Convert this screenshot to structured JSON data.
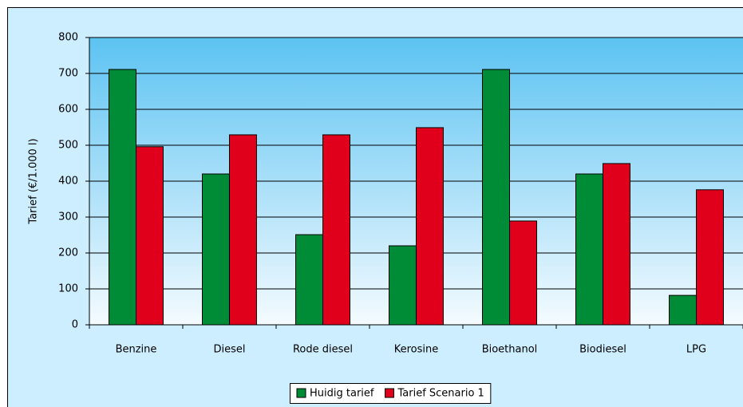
{
  "chart_data": {
    "type": "bar",
    "y_label": "Tarief (€/1.000 l)",
    "categories": [
      "Benzine",
      "Diesel",
      "Rode diesel",
      "Kerosine",
      "Bioethanol",
      "Biodiesel",
      "LPG"
    ],
    "series": [
      {
        "name": "Huidig tarief",
        "color": "#008c37",
        "values": [
          711,
          420,
          251,
          220,
          711,
          420,
          82
        ]
      },
      {
        "name": "Tarief Scenario 1",
        "color": "#e0001b",
        "values": [
          496,
          529,
          529,
          549,
          289,
          449,
          376
        ]
      }
    ],
    "ylim": [
      0,
      800
    ],
    "yticks": [
      0,
      100,
      200,
      300,
      400,
      500,
      600,
      700,
      800
    ],
    "grid": true,
    "legend": "bottom"
  }
}
